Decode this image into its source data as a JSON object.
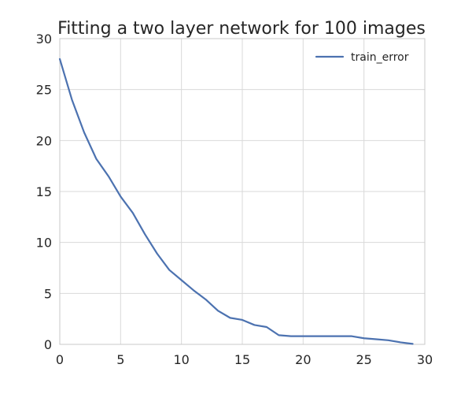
{
  "chart_data": {
    "type": "line",
    "title": "Fitting a two layer network for 100 images",
    "xlabel": "",
    "ylabel": "",
    "xlim": [
      0,
      30
    ],
    "ylim": [
      0,
      30
    ],
    "xticks": [
      0,
      5,
      10,
      15,
      20,
      25,
      30
    ],
    "yticks": [
      0,
      5,
      10,
      15,
      20,
      25,
      30
    ],
    "grid": true,
    "legend": {
      "position": "top-right",
      "entries": [
        "train_error"
      ]
    },
    "series": [
      {
        "name": "train_error",
        "color": "#4c72b0",
        "x": [
          0,
          1,
          2,
          3,
          4,
          5,
          6,
          7,
          8,
          9,
          10,
          11,
          12,
          13,
          14,
          15,
          16,
          17,
          18,
          19,
          20,
          21,
          22,
          23,
          24,
          25,
          26,
          27,
          28,
          29
        ],
        "y": [
          28.0,
          24.0,
          20.8,
          18.2,
          16.5,
          14.5,
          12.9,
          10.8,
          8.9,
          7.3,
          6.3,
          5.3,
          4.4,
          3.3,
          2.6,
          2.4,
          1.9,
          1.7,
          0.9,
          0.8,
          0.8,
          0.8,
          0.8,
          0.8,
          0.8,
          0.6,
          0.5,
          0.4,
          0.2,
          0.05
        ]
      }
    ]
  }
}
